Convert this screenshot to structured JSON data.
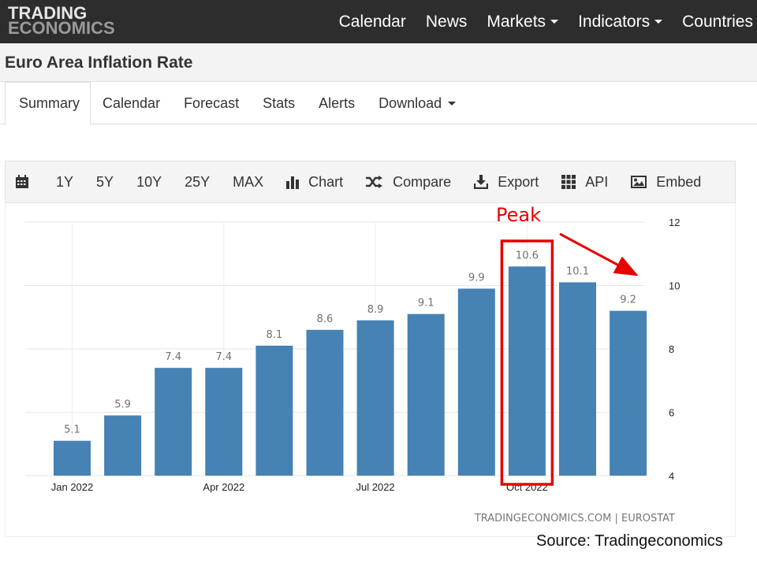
{
  "brand": {
    "line1": "TRADING",
    "line2": "ECONOMICS"
  },
  "nav": {
    "items": [
      {
        "label": "Calendar",
        "dropdown": false
      },
      {
        "label": "News",
        "dropdown": false
      },
      {
        "label": "Markets",
        "dropdown": true
      },
      {
        "label": "Indicators",
        "dropdown": true
      },
      {
        "label": "Countries",
        "dropdown": false
      }
    ]
  },
  "page": {
    "title": "Euro Area Inflation Rate"
  },
  "tabs": [
    {
      "label": "Summary",
      "active": true,
      "dropdown": false
    },
    {
      "label": "Calendar",
      "active": false,
      "dropdown": false
    },
    {
      "label": "Forecast",
      "active": false,
      "dropdown": false
    },
    {
      "label": "Stats",
      "active": false,
      "dropdown": false
    },
    {
      "label": "Alerts",
      "active": false,
      "dropdown": false
    },
    {
      "label": "Download",
      "active": false,
      "dropdown": true
    }
  ],
  "toolbar": {
    "calendar_icon": "calendar-icon",
    "ranges": [
      "1Y",
      "5Y",
      "10Y",
      "25Y",
      "MAX"
    ],
    "actions": [
      {
        "label": "Chart",
        "icon": "bar-chart-icon"
      },
      {
        "label": "Compare",
        "icon": "shuffle-icon"
      },
      {
        "label": "Export",
        "icon": "download-icon"
      },
      {
        "label": "API",
        "icon": "grid-icon"
      },
      {
        "label": "Embed",
        "icon": "image-icon"
      }
    ]
  },
  "chart_data": {
    "type": "bar",
    "categories": [
      "Jan 2022",
      "Feb 2022",
      "Mar 2022",
      "Apr 2022",
      "May 2022",
      "Jun 2022",
      "Jul 2022",
      "Aug 2022",
      "Sep 2022",
      "Oct 2022",
      "Nov 2022",
      "Dec 2022"
    ],
    "values": [
      5.1,
      5.9,
      7.4,
      7.4,
      8.1,
      8.6,
      8.9,
      9.1,
      9.9,
      10.6,
      10.1,
      9.2
    ],
    "x_tick_labels": [
      "Jan 2022",
      "Apr 2022",
      "Jul 2022",
      "Oct 2022"
    ],
    "x_tick_indices": [
      0,
      3,
      6,
      9
    ],
    "ylim": [
      4,
      12
    ],
    "y_ticks": [
      4,
      6,
      8,
      10,
      12
    ],
    "y_axis_side": "right",
    "grid": true,
    "bar_color": "#4682b4",
    "annotation": {
      "label": "Peak",
      "index": 9,
      "color": "#e60000"
    },
    "watermark": "TRADINGECONOMICS.COM | EUROSTAT"
  },
  "footer": {
    "source": "Source: Tradingeconomics"
  }
}
